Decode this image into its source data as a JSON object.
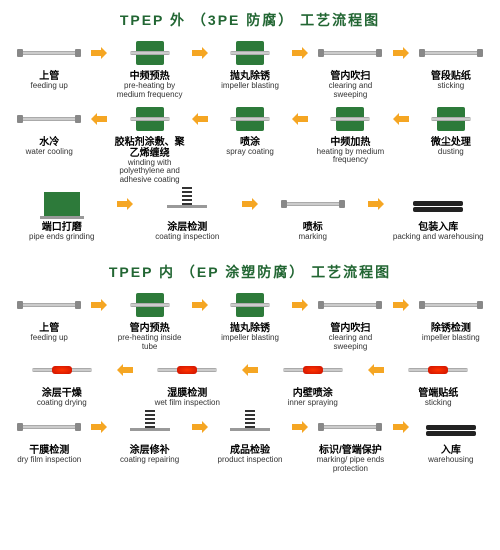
{
  "arrow_color": "#f5a623",
  "title_color": "#226633",
  "flow1": {
    "title": "TPEP 外 （3PE 防腐） 工艺流程图",
    "rows": [
      {
        "dir": "right",
        "steps": [
          {
            "icon": "pipe",
            "cn": "上管",
            "en": "feeding up"
          },
          {
            "icon": "green-box",
            "cn": "中频预热",
            "en": "pre-heating by medium frequency"
          },
          {
            "icon": "green-box",
            "cn": "抛丸除锈",
            "en": "impeller blasting"
          },
          {
            "icon": "pipe",
            "cn": "管内吹扫",
            "en": "clearing and sweeping"
          },
          {
            "icon": "pipe",
            "cn": "管段贴纸",
            "en": "sticking"
          }
        ]
      },
      {
        "dir": "left",
        "steps": [
          {
            "icon": "pipe",
            "cn": "水冷",
            "en": "water cooling"
          },
          {
            "icon": "green-box",
            "cn": "胶粘剂涂敷、聚乙烯缠绕",
            "en": "winding with polyethylene and adhesive coating"
          },
          {
            "icon": "green-box",
            "cn": "喷涂",
            "en": "spray coating"
          },
          {
            "icon": "green-box",
            "cn": "中频加热",
            "en": "heating by medium frequency"
          },
          {
            "icon": "green-box",
            "cn": "微尘处理",
            "en": "dusting"
          }
        ]
      },
      {
        "dir": "right",
        "steps": [
          {
            "icon": "machine",
            "cn": "端口打磨",
            "en": "pipe ends grinding"
          },
          {
            "icon": "spring",
            "cn": "涂层检测",
            "en": "coating inspection"
          },
          {
            "icon": "pipe",
            "cn": "喷标",
            "en": "marking"
          },
          {
            "icon": "pipe-dark",
            "cn": "包装入库",
            "en": "packing and warehousing"
          }
        ]
      }
    ]
  },
  "flow2": {
    "title": "TPEP 内 （EP 涂塑防腐） 工艺流程图",
    "rows": [
      {
        "dir": "right",
        "steps": [
          {
            "icon": "pipe",
            "cn": "上管",
            "en": "feeding up"
          },
          {
            "icon": "green-box",
            "cn": "管内预热",
            "en": "pre-heating inside tube"
          },
          {
            "icon": "green-box",
            "cn": "抛丸除锈",
            "en": "impeller blasting"
          },
          {
            "icon": "pipe",
            "cn": "管内吹扫",
            "en": "clearing and sweeping"
          },
          {
            "icon": "pipe",
            "cn": "除锈检测",
            "en": "impeller blasting"
          }
        ]
      },
      {
        "dir": "left",
        "steps": [
          {
            "icon": "pipe-red",
            "cn": "涂层干燥",
            "en": "coating drying"
          },
          {
            "icon": "pipe-red",
            "cn": "湿膜检测",
            "en": "wet film inspection"
          },
          {
            "icon": "pipe-red",
            "cn": "内壁喷涂",
            "en": "inner spraying"
          },
          {
            "icon": "pipe-red",
            "cn": "管端贴纸",
            "en": "sticking"
          }
        ]
      },
      {
        "dir": "right",
        "steps": [
          {
            "icon": "pipe",
            "cn": "干膜检测",
            "en": "dry film inspection"
          },
          {
            "icon": "spring",
            "cn": "涂层修补",
            "en": "coating repairing"
          },
          {
            "icon": "spring",
            "cn": "成品检验",
            "en": "product inspection"
          },
          {
            "icon": "pipe",
            "cn": "标识/管端保护",
            "en": "marking/ pipe ends protection"
          },
          {
            "icon": "pipe-dark",
            "cn": "入库",
            "en": "warehousing"
          }
        ]
      }
    ]
  }
}
